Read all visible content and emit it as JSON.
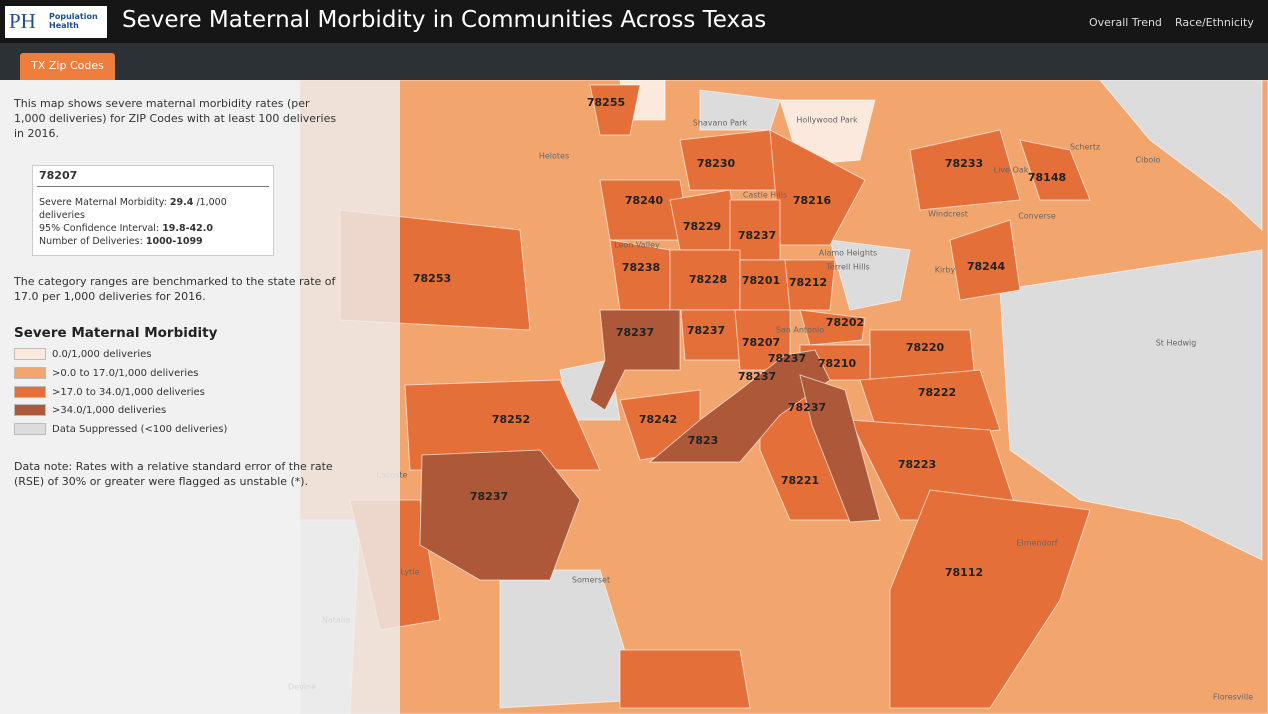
{
  "header": {
    "logo_initials": "PH",
    "logo_text": "Population Health",
    "title": "Severe Maternal Morbidity in Communities Across Texas",
    "nav": [
      "Overall Trend",
      "Race/Ethnicity"
    ]
  },
  "tabs": [
    "TX Zip Codes"
  ],
  "sidebar": {
    "intro": "This map shows severe maternal morbidity rates (per 1,000 deliveries) for ZIP Codes with at least 100 deliveries in 2016.",
    "tooltip": {
      "zip": "78207",
      "rate_label": "Severe Maternal Morbidity:",
      "rate_value": 29.4,
      "rate_unit": "/1,000 deliveries",
      "ci_label": "95% Confidence Interval:",
      "ci_value": "19.8-42.0",
      "deliveries_label": "Number of Deliveries:",
      "deliveries_value": "1000-1099"
    },
    "benchmark": "The category ranges are benchmarked to the state rate of 17.0 per 1,000 deliveries for 2016.",
    "legend": {
      "title": "Severe Maternal Morbidity",
      "items": [
        {
          "label": "0.0/1,000 deliveries",
          "color": "#fbe9dd"
        },
        {
          "label": ">0.0 to 17.0/1,000 deliveries",
          "color": "#f3a56e"
        },
        {
          "label": ">17.0 to 34.0/1,000 deliveries",
          "color": "#e56f38"
        },
        {
          "label": ">34.0/1,000 deliveries",
          "color": "#ad5838"
        },
        {
          "label": "Data Suppressed (<100 deliveries)",
          "color": "#dcdcdc"
        }
      ]
    },
    "note": "Data note: Rates with a relative standard error of the rate (RSE) of 30% or greater were flagged as unstable (*)."
  },
  "map": {
    "zip_labels": [
      "78255",
      "78230",
      "78233",
      "78148",
      "78240",
      "78216",
      "78229",
      "78237",
      "78244",
      "78238",
      "78228",
      "78201",
      "78212",
      "78253",
      "78202",
      "78237",
      "78237",
      "78207",
      "78220",
      "78237",
      "78210",
      "78237",
      "78222",
      "78252",
      "78242",
      "7823",
      "78237",
      "78223",
      "78221",
      "78237",
      "78112"
    ],
    "places": [
      "Helotes",
      "Shavano Park",
      "Hollywood Park",
      "Castle Hills",
      "Leon Valley",
      "Alamo Heights",
      "Terrell Hills",
      "San Antonio",
      "Windcrest",
      "Kirby",
      "Live Oak",
      "Schertz",
      "Cibolo",
      "Converse",
      "St Hedwig",
      "Lacoste",
      "Lytle",
      "Somerset",
      "Natalia",
      "Devine",
      "Elmendorf",
      "Floresville"
    ]
  }
}
